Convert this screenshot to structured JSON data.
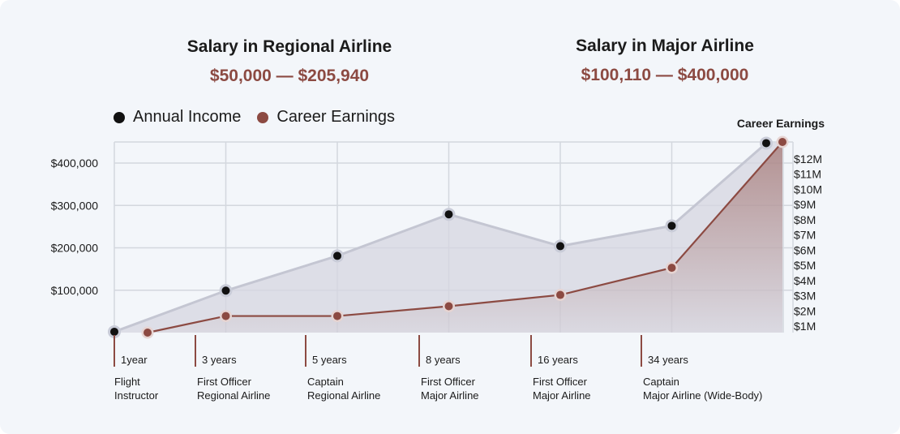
{
  "headers": {
    "regional": {
      "title": "Salary in Regional Airline",
      "range": "$50,000 — $205,940"
    },
    "major": {
      "title": "Salary in Major Airline",
      "range": "$100,110 — $400,000"
    }
  },
  "colors": {
    "background": "#f3f6fa",
    "income": "#111111",
    "earnings": "#8c4a42",
    "income_area": "#d5d6e0",
    "grid": "#d3d7de",
    "accent_text": "#8c4a42"
  },
  "chart_data": {
    "type": "line",
    "legend": [
      "Annual Income",
      "Career Earnings"
    ],
    "legend_position": "top-left",
    "grid": true,
    "left_axis": {
      "ticks": [
        "$100,000",
        "$200,000",
        "$300,000",
        "$400,000"
      ],
      "tick_values": [
        100000,
        200000,
        300000,
        400000
      ],
      "ylim": [
        0,
        450000
      ]
    },
    "right_axis": {
      "label": "Career Earnings",
      "ticks": [
        "$1M",
        "$2M",
        "$3M",
        "$4M",
        "$5M",
        "$6M",
        "$7M",
        "$8M",
        "$9M",
        "$10M",
        "$11M",
        "$12M"
      ],
      "tick_values": [
        1,
        2,
        3,
        4,
        5,
        6,
        7,
        8,
        9,
        10,
        11,
        12
      ],
      "ylim": [
        0,
        12.65
      ]
    },
    "stages": [
      {
        "years": "1year",
        "role": [
          "Flight",
          "Instructor"
        ]
      },
      {
        "years": "3 years",
        "role": [
          "First Officer",
          "Regional Airline"
        ]
      },
      {
        "years": "5 years",
        "role": [
          "Captain",
          "Regional Airline"
        ]
      },
      {
        "years": "8 years",
        "role": [
          "First Officer",
          "Major Airline"
        ]
      },
      {
        "years": "16 years",
        "role": [
          "First Officer",
          "Major Airline"
        ]
      },
      {
        "years": "34 years",
        "role": [
          "Captain",
          "Major Airline (Wide-Body)"
        ]
      }
    ],
    "series": [
      {
        "name": "Annual Income",
        "axis": "left",
        "values": [
          2000,
          99000,
          181000,
          279000,
          204000,
          252000,
          447000
        ]
      },
      {
        "name": "Career Earnings",
        "axis": "right",
        "values": [
          0.0,
          1.1,
          1.1,
          1.75,
          2.5,
          4.3,
          12.65
        ]
      }
    ]
  }
}
